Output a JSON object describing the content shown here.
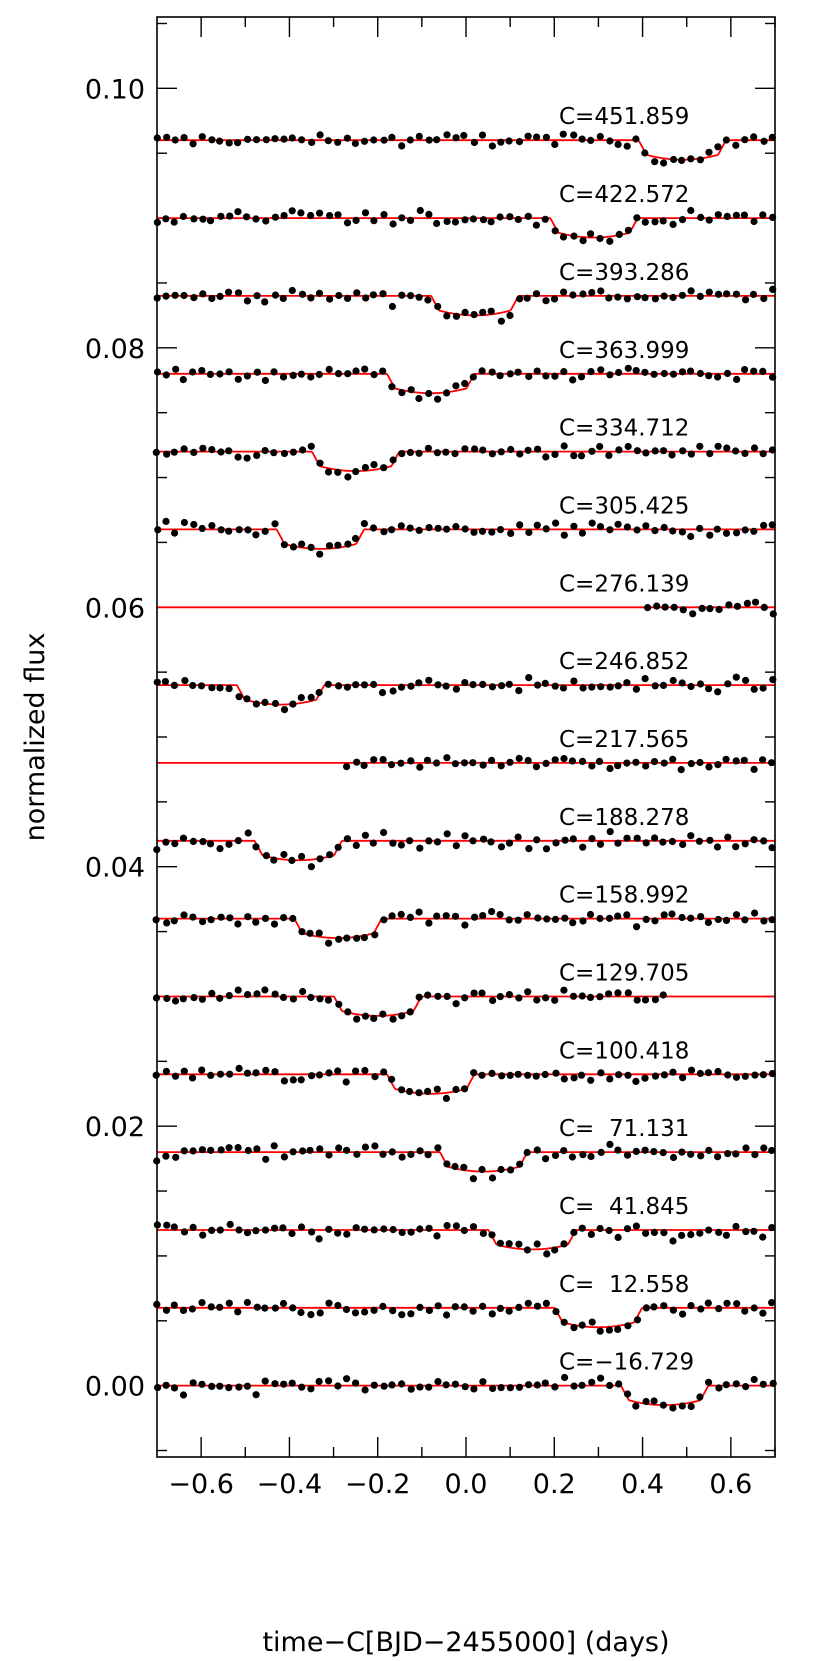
{
  "chart_data": {
    "type": "scatter",
    "xlabel": "time−C[BJD−2455000] (days)",
    "ylabel": "normalized flux",
    "xlim": [
      -0.7,
      0.7
    ],
    "ylim": [
      -0.0055,
      0.1055
    ],
    "x_ticks": [
      -0.6,
      -0.4,
      -0.2,
      0.0,
      0.2,
      0.4,
      0.6
    ],
    "x_tick_labels": [
      "−0.6",
      "−0.4",
      "−0.2",
      "0.0",
      "0.2",
      "0.4",
      "0.6"
    ],
    "y_ticks": [
      0.0,
      0.02,
      0.04,
      0.06,
      0.08,
      0.1
    ],
    "y_tick_labels": [
      "0.00",
      "0.02",
      "0.04",
      "0.06",
      "0.08",
      "0.10"
    ],
    "x_minor_step": 0.1,
    "y_minor_step": 0.005,
    "point_color": "#000000",
    "model_color": "#ff0000",
    "transit_half_width": 0.099,
    "ingress_duration": 0.018,
    "transit_depth": 0.0015,
    "series": [
      {
        "label": "C=451.859",
        "offset": 0.096,
        "mid": 0.49,
        "data_range": [
          -0.7,
          0.7
        ]
      },
      {
        "label": "C=422.572",
        "offset": 0.09,
        "mid": 0.29,
        "data_range": [
          -0.7,
          0.7
        ]
      },
      {
        "label": "C=393.286",
        "offset": 0.084,
        "mid": 0.02,
        "data_range": [
          -0.7,
          0.7
        ]
      },
      {
        "label": "C=363.999",
        "offset": 0.078,
        "mid": -0.08,
        "data_range": [
          -0.7,
          0.7
        ]
      },
      {
        "label": "C=334.712",
        "offset": 0.072,
        "mid": -0.25,
        "data_range": [
          -0.7,
          0.7
        ]
      },
      {
        "label": "C=305.425",
        "offset": 0.066,
        "mid": -0.33,
        "data_range": [
          -0.7,
          0.7
        ]
      },
      {
        "label": "C=276.139",
        "offset": 0.06,
        "mid": null,
        "data_range": [
          0.41,
          0.7
        ]
      },
      {
        "label": "C=246.852",
        "offset": 0.054,
        "mid": -0.42,
        "data_range": [
          -0.7,
          0.7
        ]
      },
      {
        "label": "C=217.565",
        "offset": 0.048,
        "mid": null,
        "data_range": [
          -0.27,
          0.7
        ]
      },
      {
        "label": "C=188.278",
        "offset": 0.042,
        "mid": -0.38,
        "data_range": [
          -0.7,
          0.7
        ]
      },
      {
        "label": "C=158.992",
        "offset": 0.036,
        "mid": -0.29,
        "data_range": [
          -0.7,
          0.7
        ]
      },
      {
        "label": "C=129.705",
        "offset": 0.03,
        "mid": -0.2,
        "data_range": [
          -0.7,
          0.45
        ]
      },
      {
        "label": "C=100.418",
        "offset": 0.024,
        "mid": -0.08,
        "data_range": [
          -0.7,
          0.7
        ]
      },
      {
        "label": "C=  71.131",
        "offset": 0.018,
        "mid": 0.04,
        "data_range": [
          -0.7,
          0.7
        ]
      },
      {
        "label": "C=  41.845",
        "offset": 0.012,
        "mid": 0.15,
        "data_range": [
          -0.7,
          0.7
        ]
      },
      {
        "label": "C=  12.558",
        "offset": 0.006,
        "mid": 0.3,
        "data_range": [
          -0.7,
          0.7
        ]
      },
      {
        "label": "C=−16.729",
        "offset": 0.0,
        "mid": 0.45,
        "data_range": [
          -0.7,
          0.7
        ]
      }
    ]
  }
}
